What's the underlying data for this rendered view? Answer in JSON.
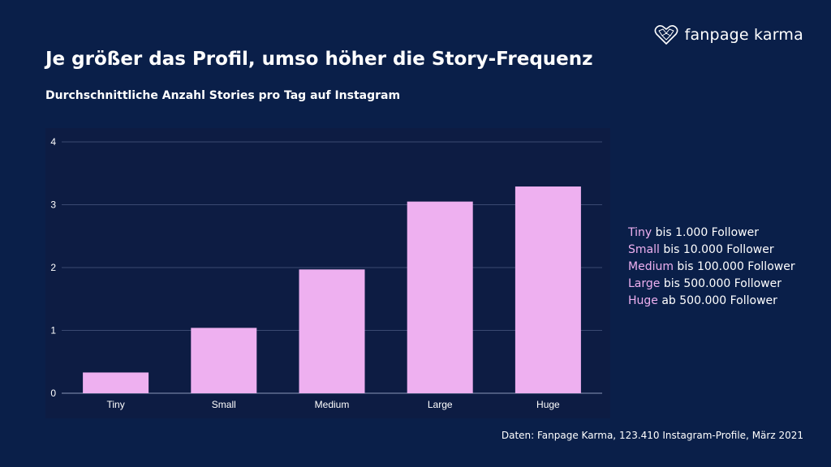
{
  "brand": {
    "name": "fanpage karma",
    "logo_icon": "heart-network-icon"
  },
  "title": "Je größer das Profil, umso höher die Story-Frequenz",
  "subtitle": "Durchschnittliche Anzahl Stories pro Tag auf Instagram",
  "chart_data": {
    "type": "bar",
    "categories": [
      "Tiny",
      "Small",
      "Medium",
      "Large",
      "Huge"
    ],
    "values": [
      0.33,
      1.04,
      1.97,
      3.05,
      3.29
    ],
    "ylim": [
      0,
      4
    ],
    "yticks": [
      0,
      1,
      2,
      3,
      4
    ],
    "xlabel": "",
    "ylabel": "",
    "grid": true,
    "bar_color": "#eeb0f0"
  },
  "legend": [
    {
      "key": "Tiny",
      "text": " bis 1.000 Follower"
    },
    {
      "key": "Small",
      "text": " bis 10.000 Follower"
    },
    {
      "key": "Medium",
      "text": " bis 100.000 Follower"
    },
    {
      "key": "Large",
      "text": " bis 500.000 Follower"
    },
    {
      "key": "Huge",
      "text": " ab 500.000 Follower"
    }
  ],
  "source": "Daten: Fanpage Karma, 123.410 Instagram-Profile, März 2021",
  "colors": {
    "background": "#0a1f49",
    "bar": "#eeb0f0",
    "accent": "#eeb0f0"
  }
}
